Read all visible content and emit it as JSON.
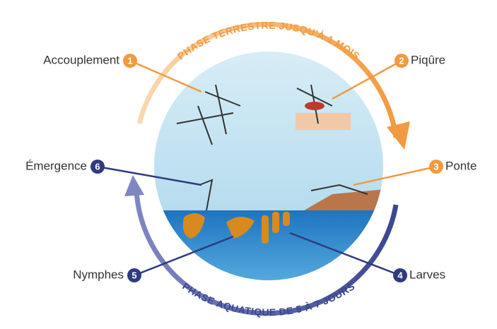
{
  "phases": {
    "terrestrial": "PHASE TERRESTRE JUSQU'À 1 MOIS",
    "aquatic": "PHASE AQUATIQUE DE 5 À 7 JOURS"
  },
  "stages": [
    {
      "number": 1,
      "label": "Accouplement"
    },
    {
      "number": 2,
      "label": "Piqûre"
    },
    {
      "number": 3,
      "label": "Ponte"
    },
    {
      "number": 4,
      "label": "Larves"
    },
    {
      "number": 5,
      "label": "Nymphes"
    },
    {
      "number": 6,
      "label": "Émergence"
    }
  ]
}
